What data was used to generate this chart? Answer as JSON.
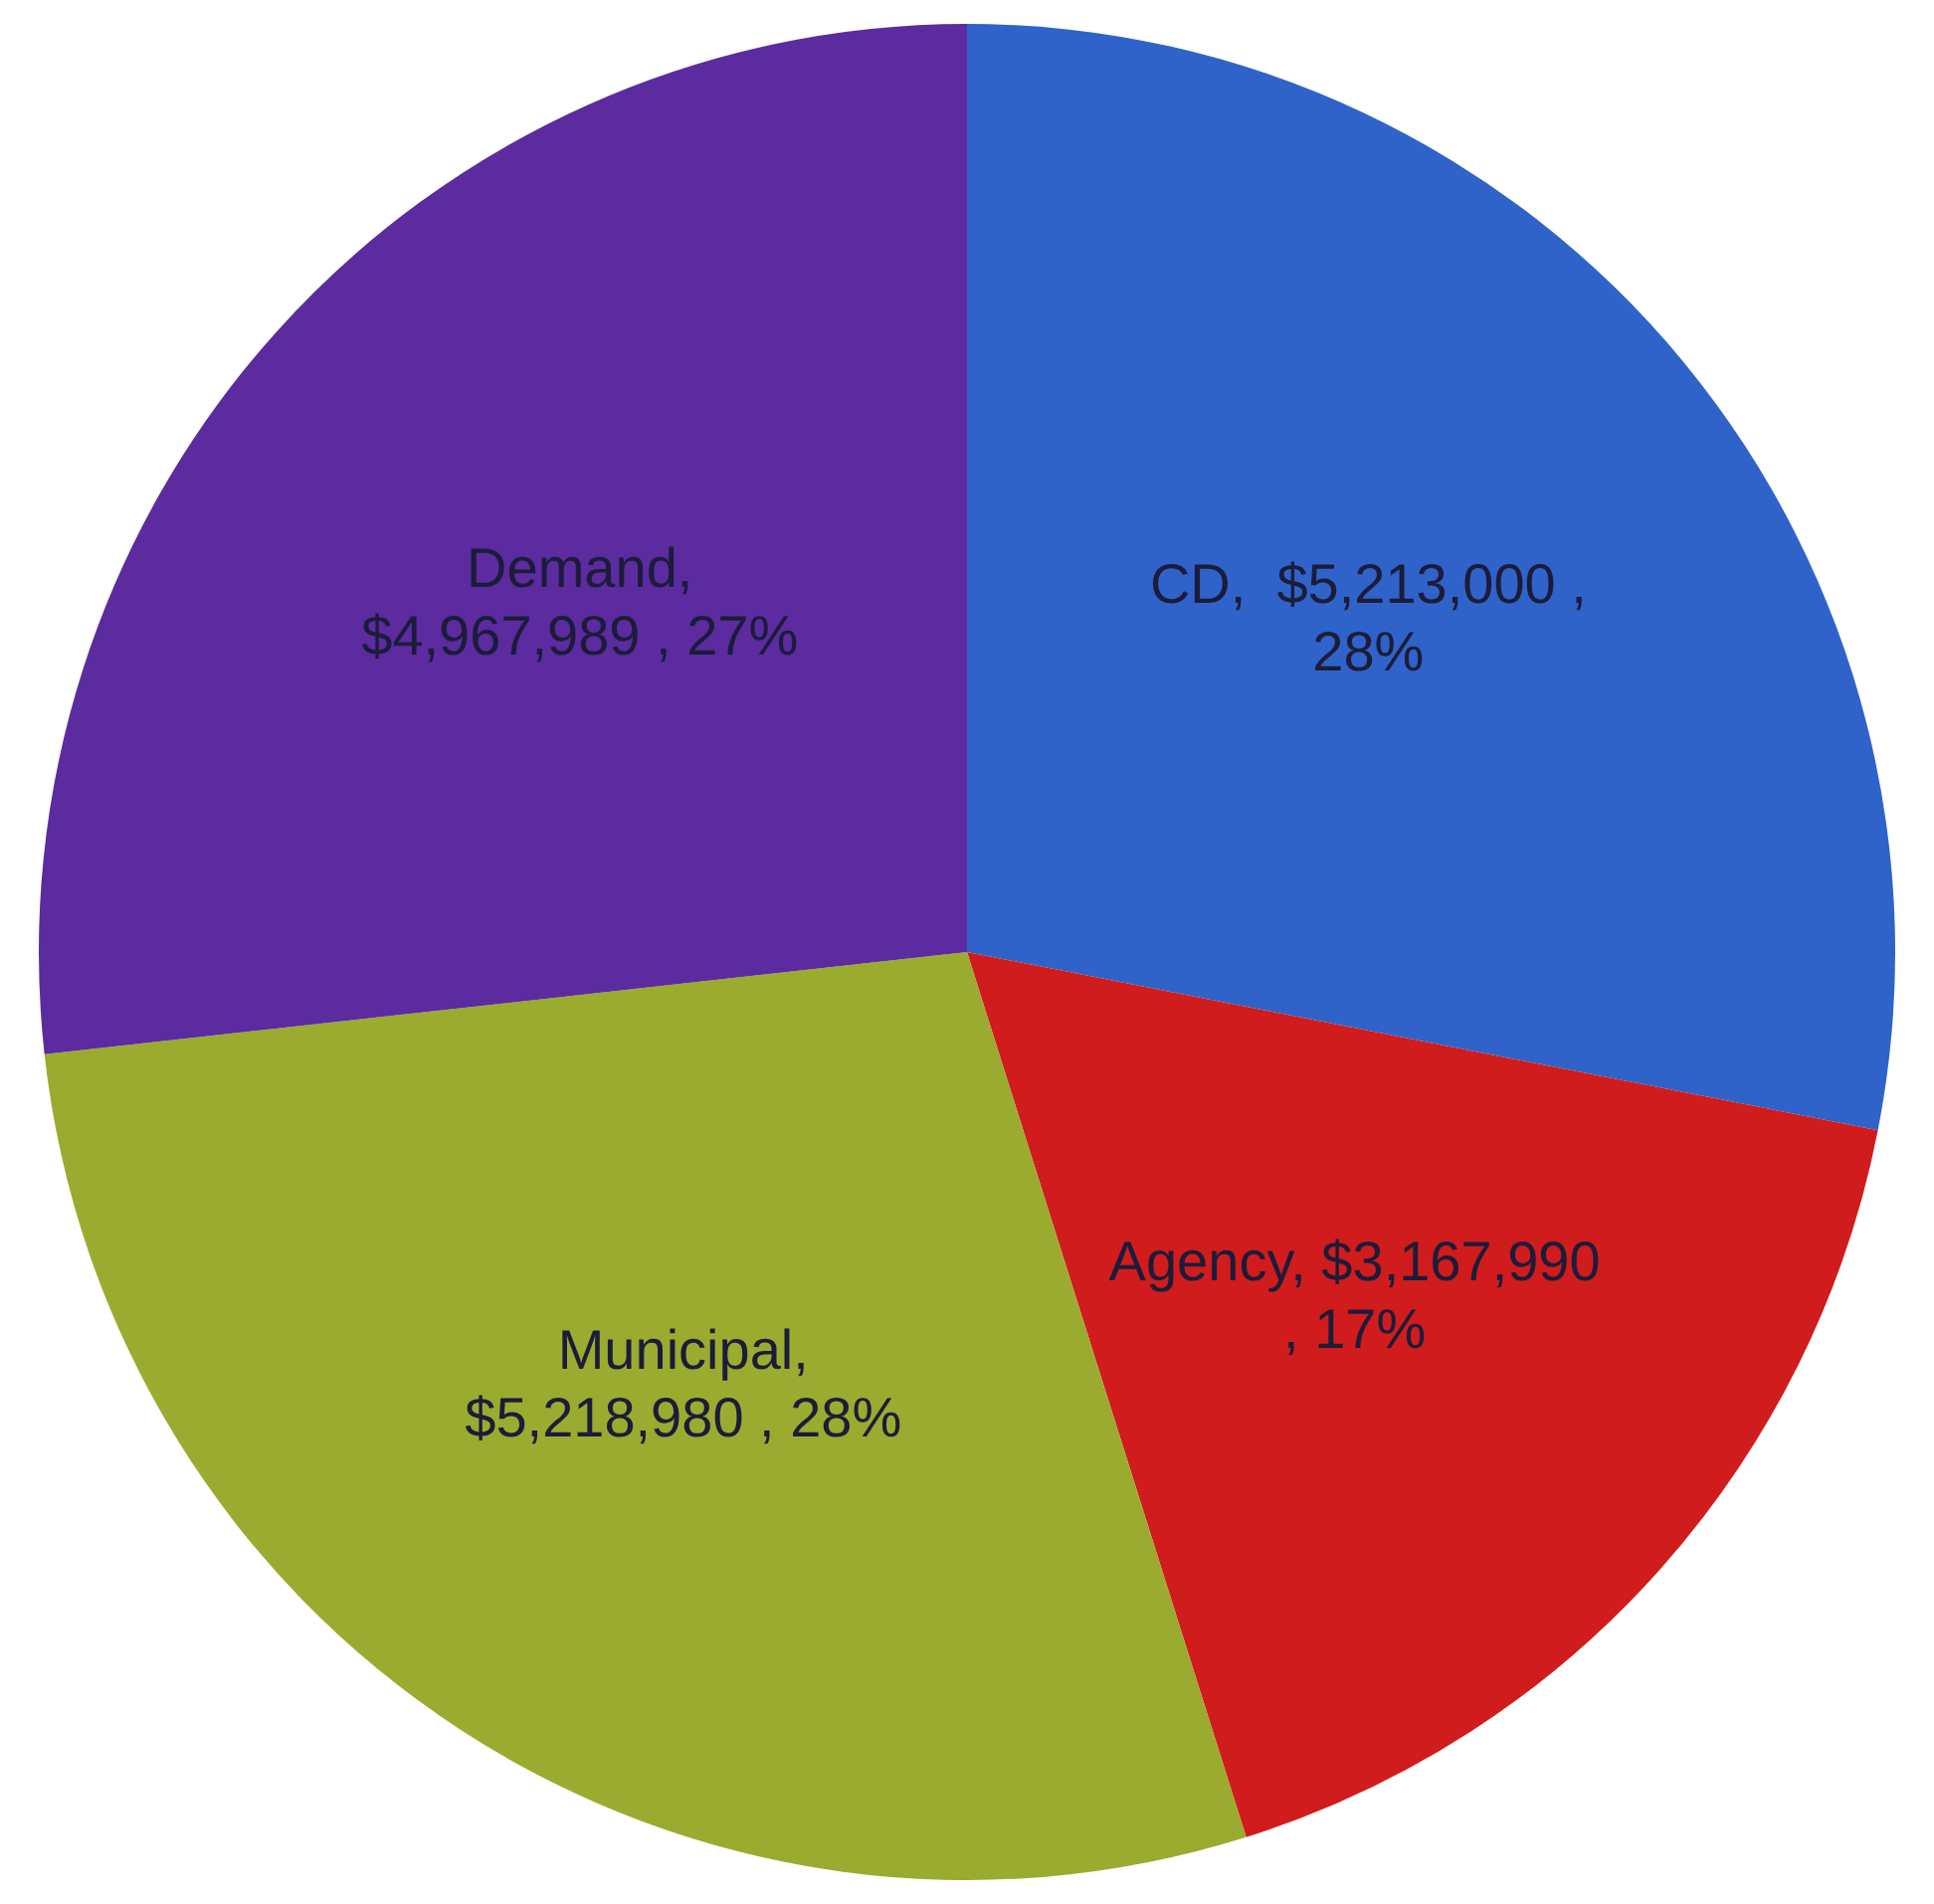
{
  "chart_data": {
    "type": "pie",
    "categories": [
      "CD",
      "Agency",
      "Municipal",
      "Demand"
    ],
    "values": [
      5213000,
      3167990,
      5218980,
      4967989
    ],
    "colors": [
      "#2f63c9",
      "#d01c1c",
      "#9bab2f",
      "#5b2b9f"
    ],
    "value_labels": [
      ",  $5,213,000 , 28%",
      ", $3,167,990 , 17%",
      ", $5,218,980 , 28%",
      ", $4,967,989 , 27%"
    ],
    "legend": false
  }
}
